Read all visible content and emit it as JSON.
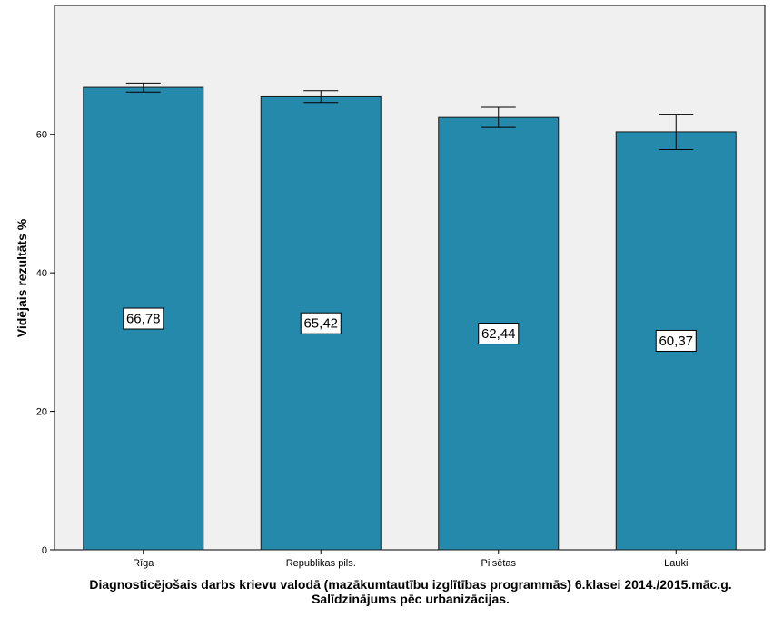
{
  "chart_data": {
    "type": "bar",
    "categories": [
      "Rīga",
      "Republikas pils.",
      "Pilsētas",
      "Lauki"
    ],
    "values": [
      66.78,
      65.42,
      62.44,
      60.37
    ],
    "data_labels": [
      "66,78",
      "65,42",
      "62,44",
      "60,37"
    ],
    "error_bars": [
      {
        "low": 66.1,
        "high": 67.4
      },
      {
        "low": 64.6,
        "high": 66.3
      },
      {
        "low": 61.0,
        "high": 63.9
      },
      {
        "low": 57.8,
        "high": 62.9
      }
    ],
    "ylabel": "Vidējais rezultāts %",
    "xlabel_lines": [
      "Diagnosticējošais darbs krievu valodā (mazākumtautību izglītības programmās) 6.klasei 2014./2015.māc.g.",
      "Salīdzinājums pēc urbanizācijas."
    ],
    "yticks": [
      0,
      20,
      40,
      60
    ],
    "ylim": [
      0,
      78.6
    ],
    "grid": false,
    "colors": {
      "bar": "#2589ab",
      "bar_stroke": "#1a1a1a",
      "plot_background": "#f0f0f0"
    }
  }
}
